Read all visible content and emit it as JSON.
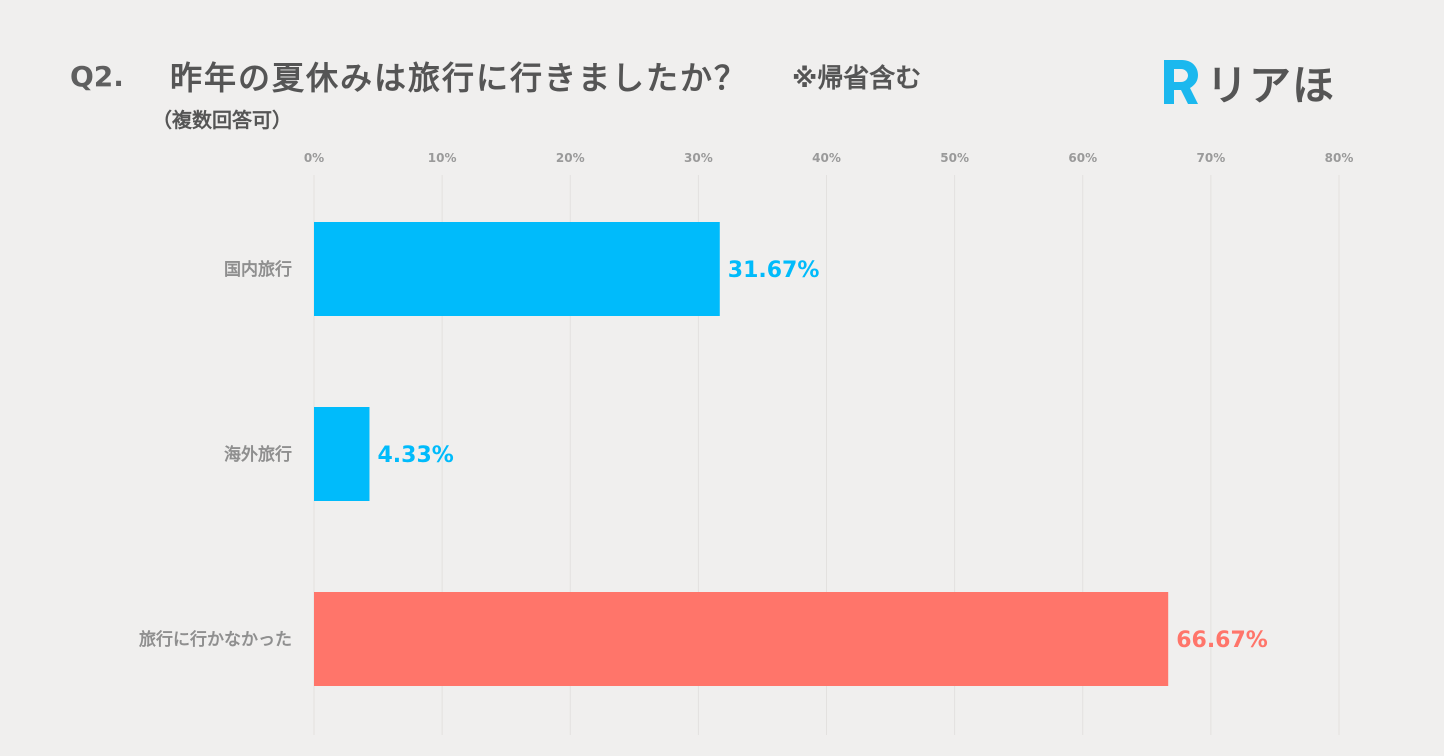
{
  "header": {
    "question_number": "Q2.",
    "question_text": "昨年の夏休みは旅行に行きましたか？",
    "note": "※帰省含む",
    "subtitle": "（複数回答可）"
  },
  "logo": {
    "mark_letter": "R",
    "text": "リアほ",
    "mark_color": "#1bb8ee"
  },
  "colors": {
    "travel_bar": "#00bbfb",
    "no_travel_bar": "#ff756a",
    "grid": "#e3e1df",
    "tick_text": "#9a9a9a",
    "category_text": "#8f8f8f"
  },
  "chart_data": {
    "type": "bar",
    "orientation": "horizontal",
    "categories": [
      "国内旅行",
      "海外旅行",
      "旅行に行かなかった"
    ],
    "values": [
      31.67,
      4.33,
      66.67
    ],
    "value_labels": [
      "31.67%",
      "4.33%",
      "66.67%"
    ],
    "bar_colors": [
      "#00bbfb",
      "#00bbfb",
      "#ff756a"
    ],
    "xlim": [
      0,
      80
    ],
    "x_ticks": [
      0,
      10,
      20,
      30,
      40,
      50,
      60,
      70,
      80
    ],
    "x_tick_labels": [
      "0%",
      "10%",
      "20%",
      "30%",
      "40%",
      "50%",
      "60%",
      "70%",
      "80%"
    ],
    "grid": true,
    "legend": "none"
  }
}
